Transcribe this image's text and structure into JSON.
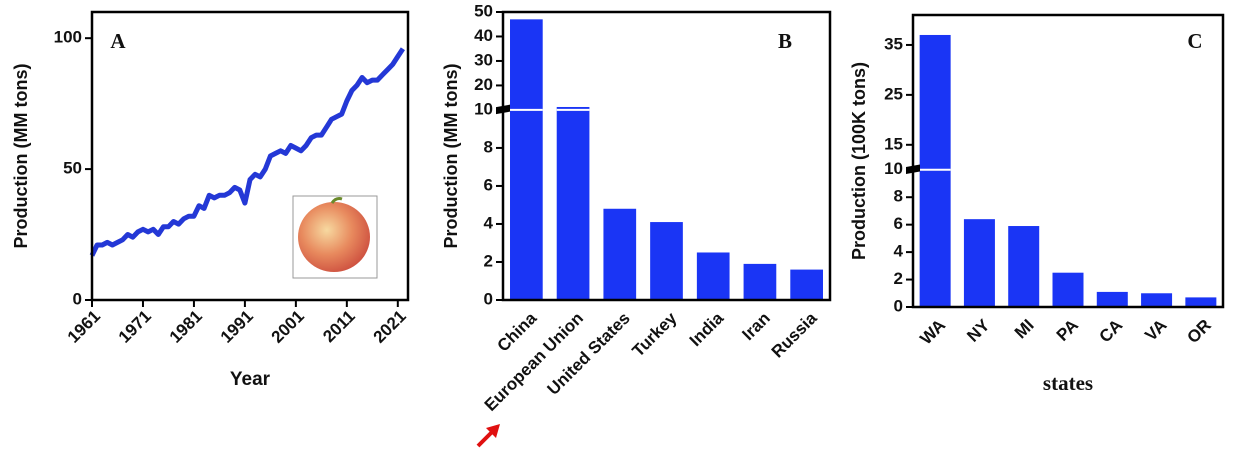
{
  "chart_data": [
    {
      "type": "line",
      "panel": "A",
      "xlabel": "Year",
      "ylabel": "Production (MM tons)",
      "x": [
        1961,
        1962,
        1963,
        1964,
        1965,
        1966,
        1967,
        1968,
        1969,
        1970,
        1971,
        1972,
        1973,
        1974,
        1975,
        1976,
        1977,
        1978,
        1979,
        1980,
        1981,
        1982,
        1983,
        1984,
        1985,
        1986,
        1987,
        1988,
        1989,
        1990,
        1991,
        1992,
        1993,
        1994,
        1995,
        1996,
        1997,
        1998,
        1999,
        2000,
        2001,
        2002,
        2003,
        2004,
        2005,
        2006,
        2007,
        2008,
        2009,
        2010,
        2011,
        2012,
        2013,
        2014,
        2015,
        2016,
        2017,
        2018,
        2019,
        2020,
        2021,
        2022
      ],
      "values": [
        17,
        21,
        21,
        22,
        21,
        22,
        23,
        25,
        24,
        26,
        27,
        26,
        27,
        25,
        28,
        28,
        30,
        29,
        31,
        32,
        32,
        36,
        35,
        40,
        39,
        40,
        40,
        41,
        43,
        42,
        37,
        46,
        48,
        47,
        50,
        55,
        56,
        57,
        56,
        59,
        58,
        57,
        59,
        62,
        63,
        63,
        66,
        69,
        70,
        71,
        76,
        80,
        82,
        85,
        83,
        84,
        84,
        86,
        88,
        90,
        93,
        96
      ],
      "color": "#2438d6",
      "xlim": [
        1961,
        2023
      ],
      "xticks": [
        1961,
        1971,
        1981,
        1991,
        2001,
        2011,
        2021
      ],
      "ylim": [
        0,
        110
      ],
      "yticks": [
        0,
        50,
        100
      ]
    },
    {
      "type": "bar",
      "panel": "B",
      "ylabel": "Production  (MM tons)",
      "categories": [
        "China",
        "European Union",
        "United States",
        "Turkey",
        "India",
        "Iran",
        "Russia"
      ],
      "values": [
        47,
        11.2,
        4.8,
        4.1,
        2.5,
        1.9,
        1.6
      ],
      "color": "#1a35f5",
      "ylim": [
        0,
        50
      ],
      "axis_break": 10,
      "yticks": [
        0,
        2,
        4,
        6,
        8,
        10,
        20,
        30,
        40,
        50
      ]
    },
    {
      "type": "bar",
      "panel": "C",
      "xlabel": "states",
      "ylabel": "Production (100K tons)",
      "categories": [
        "WA",
        "NY",
        "MI",
        "PA",
        "CA",
        "VA",
        "OR"
      ],
      "values": [
        37,
        6.4,
        5.9,
        2.5,
        1.1,
        1.0,
        0.7
      ],
      "color": "#1a35f5",
      "ylim": [
        0,
        41
      ],
      "axis_break": 10,
      "yticks": [
        0,
        2,
        4,
        6,
        8,
        10,
        15,
        25,
        35
      ]
    }
  ]
}
